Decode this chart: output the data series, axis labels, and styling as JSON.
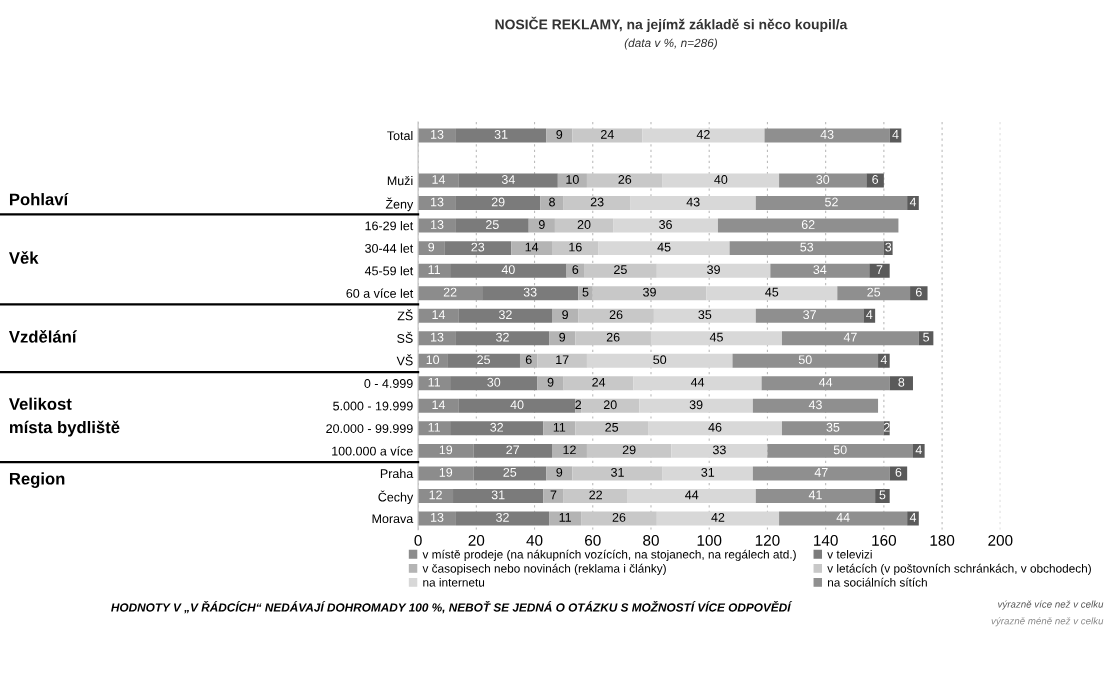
{
  "chart_data": {
    "type": "bar",
    "orientation": "horizontal",
    "stacked": true,
    "title": "NOSIČE REKLAMY, na jejímž základě si něco koupil/a",
    "subtitle": "(data v %, n=286)",
    "categories": [
      "Total",
      null,
      "Muži",
      "Ženy",
      "16-29 let",
      "30-44 let",
      "45-59 let",
      "60 a více let",
      "ZŠ",
      "SŠ",
      "VŠ",
      "0 - 4.999",
      "5.000 - 19.999",
      "20.000 - 99.999",
      "100.000 a více",
      "Praha",
      "Čechy",
      "Morava"
    ],
    "series": [
      {
        "name": "v místě prodeje (na nákupních vozících, na stojanech, na regálech atd.)",
        "color": "#8c8c8c",
        "values": [
          13,
          null,
          14,
          13,
          13,
          9,
          11,
          22,
          14,
          13,
          10,
          11,
          14,
          11,
          19,
          19,
          12,
          13
        ]
      },
      {
        "name": "v televizi",
        "color": "#7b7b7b",
        "values": [
          31,
          null,
          34,
          29,
          25,
          23,
          40,
          33,
          32,
          32,
          25,
          30,
          40,
          32,
          27,
          25,
          31,
          32
        ]
      },
      {
        "name": "v časopisech nebo novinách (reklama i články)",
        "color": "#b4b4b4",
        "values": [
          9,
          null,
          10,
          8,
          9,
          14,
          6,
          5,
          9,
          9,
          6,
          9,
          2,
          11,
          12,
          9,
          7,
          11
        ]
      },
      {
        "name": "v letácích (v poštovních schránkách, v obchodech)",
        "color": "#c8c8c8",
        "values": [
          24,
          null,
          26,
          23,
          20,
          16,
          25,
          39,
          26,
          26,
          17,
          24,
          20,
          25,
          29,
          31,
          22,
          26
        ]
      },
      {
        "name": "na internetu",
        "color": "#d8d8d8",
        "values": [
          42,
          null,
          40,
          43,
          36,
          45,
          39,
          45,
          35,
          45,
          50,
          44,
          39,
          46,
          33,
          31,
          44,
          42
        ]
      },
      {
        "name": "na sociálních sítích",
        "color": "#8f8f8f",
        "values": [
          43,
          null,
          30,
          52,
          62,
          53,
          34,
          25,
          37,
          47,
          50,
          44,
          43,
          35,
          50,
          47,
          41,
          44
        ]
      },
      {
        "color": "#5a5a5a",
        "values": [
          4,
          null,
          6,
          4,
          0,
          3,
          7,
          6,
          4,
          5,
          4,
          8,
          0,
          2,
          4,
          6,
          5,
          4
        ],
        "value_labels": [
          "4",
          null,
          "6",
          "4",
          null,
          "3",
          "7",
          "6",
          "4",
          "5",
          "4",
          "8",
          null,
          "2",
          "4",
          "6",
          "5",
          "4"
        ]
      }
    ],
    "xlim": [
      0,
      200
    ],
    "xticks": [
      0,
      20,
      40,
      60,
      80,
      100,
      120,
      140,
      160,
      180,
      200
    ],
    "grid": "x",
    "legend": "bottom",
    "data_labels": true,
    "annotations": [
      "Pohlaví",
      "Věk",
      "Vzdělání",
      "Velikost\nmísta bydliště",
      "Region",
      "HODNOTY V „V ŘÁDCÍCH“ NEDÁVAJÍ DOHROMADY 100 %, NEBOŤ SE JEDNÁ O OTÁZKU S MOŽNOSTÍ VÍCE ODPOVĚDÍ",
      "výrazně více než v celku",
      "výrazně méně než v celku"
    ]
  }
}
